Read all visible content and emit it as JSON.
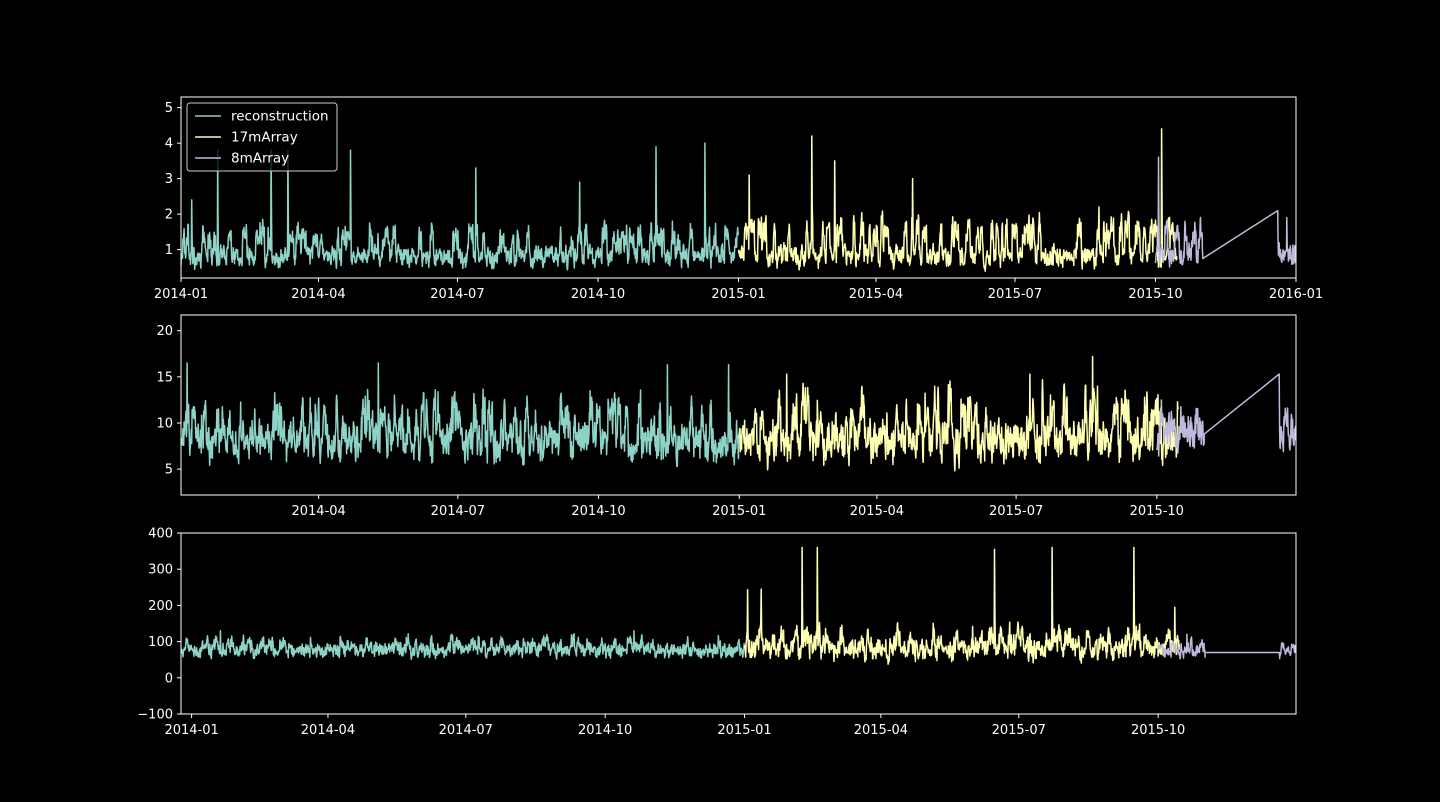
{
  "figure": {
    "background": "#000000",
    "foreground": "#ffffff"
  },
  "legend": {
    "placement": "upper-left",
    "entries": [
      {
        "label": "reconstruction",
        "color": "#8dd3c7"
      },
      {
        "label": "17mArray",
        "color": "#ffffb3"
      },
      {
        "label": "8mArray",
        "color": "#bebada"
      }
    ]
  },
  "chart_data": [
    {
      "type": "line",
      "title": "",
      "xlabel": "",
      "ylabel": "",
      "x_range": [
        "2014-01-01",
        "2016-01-01"
      ],
      "ylim": [
        0.2,
        5.3
      ],
      "yticks": [
        1,
        2,
        3,
        4,
        5
      ],
      "xticks": [
        "2014-01",
        "2014-04",
        "2014-07",
        "2014-10",
        "2015-01",
        "2015-04",
        "2015-07",
        "2015-10",
        "2016-01"
      ],
      "grid": false,
      "series": [
        {
          "name": "reconstruction",
          "color": "#8dd3c7",
          "x_range": [
            "2014-01-01",
            "2015-01-01"
          ],
          "typical_range": [
            0.3,
            1.8
          ],
          "median": 0.8,
          "peaks": [
            [
              "2014-01-08",
              2.4
            ],
            [
              "2014-01-25",
              3.8
            ],
            [
              "2014-03-01",
              3.8
            ],
            [
              "2014-03-12",
              3.8
            ],
            [
              "2014-04-22",
              3.8
            ],
            [
              "2014-07-13",
              3.3
            ],
            [
              "2014-09-19",
              2.9
            ],
            [
              "2014-11-08",
              3.9
            ],
            [
              "2014-12-10",
              4.0
            ]
          ]
        },
        {
          "name": "17mArray",
          "color": "#ffffb3",
          "x_range": [
            "2015-01-01",
            "2015-10-15"
          ],
          "typical_range": [
            0.3,
            2.0
          ],
          "median": 0.8,
          "peaks": [
            [
              "2015-01-08",
              3.1
            ],
            [
              "2015-02-18",
              4.2
            ],
            [
              "2015-03-05",
              3.5
            ],
            [
              "2015-04-25",
              3.0
            ],
            [
              "2015-08-25",
              2.2
            ],
            [
              "2015-10-05",
              4.4
            ]
          ]
        },
        {
          "name": "8mArray",
          "color": "#bebada",
          "x_range": [
            "2015-10-01",
            "2016-01-01"
          ],
          "typical_range": [
            0.3,
            2.0
          ],
          "median": 0.8,
          "peaks": [
            [
              "2015-10-03",
              3.6
            ],
            [
              "2015-11-25",
              2.1
            ],
            [
              "2015-12-26",
              1.9
            ]
          ],
          "flat_segment": {
            "x_range": [
              "2015-11-01",
              "2015-12-20"
            ],
            "value": 0.75
          }
        }
      ]
    },
    {
      "type": "line",
      "title": "",
      "xlabel": "",
      "ylabel": "",
      "x_range": [
        "2014-01-01",
        "2015-12-31"
      ],
      "ylim": [
        2.2,
        21.7
      ],
      "yticks": [
        5,
        10,
        15,
        20
      ],
      "xticks": [
        "2014-04",
        "2014-07",
        "2014-10",
        "2015-01",
        "2015-04",
        "2015-07",
        "2015-10"
      ],
      "grid": false,
      "series": [
        {
          "name": "reconstruction",
          "color": "#8dd3c7",
          "x_range": [
            "2014-01-01",
            "2015-01-01"
          ],
          "typical_range": [
            3.5,
            13.5
          ],
          "median": 8.0,
          "peaks": [
            [
              "2014-01-05",
              16.5
            ],
            [
              "2014-05-10",
              16.5
            ],
            [
              "2014-11-15",
              16.3
            ],
            [
              "2014-12-25",
              16.3
            ]
          ]
        },
        {
          "name": "17mArray",
          "color": "#ffffb3",
          "x_range": [
            "2015-01-01",
            "2015-10-15"
          ],
          "typical_range": [
            3.0,
            14.0
          ],
          "median": 8.0,
          "peaks": [
            [
              "2015-02-01",
              15.3
            ],
            [
              "2015-07-10",
              15.3
            ],
            [
              "2015-08-20",
              17.2
            ]
          ]
        },
        {
          "name": "8mArray",
          "color": "#bebada",
          "x_range": [
            "2015-10-01",
            "2015-12-31"
          ],
          "typical_range": [
            3.5,
            13.0
          ],
          "median": 8.8,
          "peaks": [
            [
              "2015-12-10",
              15.3
            ]
          ],
          "flat_segment": {
            "x_range": [
              "2015-11-01",
              "2015-12-20"
            ],
            "value": 8.8
          }
        }
      ]
    },
    {
      "type": "line",
      "title": "",
      "xlabel": "",
      "ylabel": "",
      "x_range": [
        "2013-12-25",
        "2015-12-31"
      ],
      "ylim": [
        -100,
        400
      ],
      "yticks": [
        -100,
        0,
        100,
        200,
        300,
        400
      ],
      "xticks": [
        "2014-01",
        "2014-04",
        "2014-07",
        "2014-10",
        "2015-01",
        "2015-04",
        "2015-07",
        "2015-10"
      ],
      "grid": false,
      "series": [
        {
          "name": "reconstruction",
          "color": "#8dd3c7",
          "x_range": [
            "2013-12-25",
            "2015-01-01"
          ],
          "typical_range": [
            30,
            120
          ],
          "median": 75,
          "peaks": [
            [
              "2014-01-20",
              130
            ],
            [
              "2014-10-20",
              130
            ]
          ]
        },
        {
          "name": "17mArray",
          "color": "#ffffb3",
          "x_range": [
            "2015-01-01",
            "2015-10-15"
          ],
          "typical_range": [
            10,
            150
          ],
          "median": 80,
          "peaks": [
            [
              "2015-01-03",
              243
            ],
            [
              "2015-01-12",
              245
            ],
            [
              "2015-02-08",
              360
            ],
            [
              "2015-02-18",
              360
            ],
            [
              "2015-06-15",
              355
            ],
            [
              "2015-07-23",
              360
            ],
            [
              "2015-09-15",
              360
            ],
            [
              "2015-10-12",
              195
            ]
          ]
        },
        {
          "name": "8mArray",
          "color": "#bebada",
          "x_range": [
            "2015-10-01",
            "2015-12-31"
          ],
          "typical_range": [
            30,
            110
          ],
          "median": 75,
          "peaks": [
            [
              "2015-10-20",
              120
            ]
          ],
          "flat_segment": {
            "x_range": [
              "2015-11-01",
              "2015-12-20"
            ],
            "value": 70
          }
        }
      ]
    }
  ]
}
